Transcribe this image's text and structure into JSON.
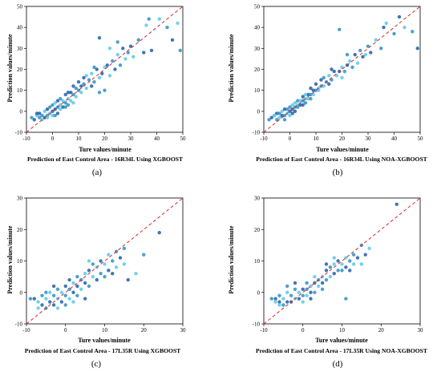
{
  "colors": {
    "points": "#2e8fc4",
    "points_dark": "#1f5fa8",
    "points_light": "#5cc8e8",
    "reference_line": "#d62728",
    "frame": "#000000"
  },
  "chart_data": [
    {
      "type": "scatter",
      "panel_label": "(a)",
      "title": "Prediction of East Control Area - 16R34L Using XGBOOST",
      "xlabel": "Ture values/minute",
      "ylabel": "Prediction values/minute",
      "xlim": [
        -10,
        50
      ],
      "ylim": [
        -10,
        50
      ],
      "xticks": [
        -10,
        0,
        10,
        20,
        30,
        40,
        50
      ],
      "yticks": [
        -10,
        0,
        10,
        20,
        30,
        40,
        50
      ],
      "reference_line": "y = x (dashed)",
      "points": [
        [
          -8,
          -3
        ],
        [
          -7,
          -4
        ],
        [
          -6,
          -2
        ],
        [
          -5,
          -3
        ],
        [
          -5,
          -1
        ],
        [
          -4,
          -4
        ],
        [
          -4,
          -2
        ],
        [
          -3,
          -3
        ],
        [
          -3,
          0
        ],
        [
          -2,
          -2
        ],
        [
          -2,
          1
        ],
        [
          -1,
          -1
        ],
        [
          -1,
          2
        ],
        [
          0,
          0
        ],
        [
          0,
          -2
        ],
        [
          0,
          3
        ],
        [
          1,
          1
        ],
        [
          1,
          4
        ],
        [
          2,
          2
        ],
        [
          2,
          -1
        ],
        [
          3,
          3
        ],
        [
          3,
          6
        ],
        [
          4,
          2
        ],
        [
          4,
          5
        ],
        [
          5,
          4
        ],
        [
          5,
          8
        ],
        [
          6,
          6
        ],
        [
          6,
          3
        ],
        [
          7,
          9
        ],
        [
          7,
          5
        ],
        [
          8,
          8
        ],
        [
          8,
          12
        ],
        [
          9,
          7
        ],
        [
          10,
          10
        ],
        [
          10,
          14
        ],
        [
          11,
          9
        ],
        [
          12,
          13
        ],
        [
          12,
          16
        ],
        [
          13,
          11
        ],
        [
          14,
          15
        ],
        [
          15,
          12
        ],
        [
          15,
          18
        ],
        [
          16,
          14
        ],
        [
          17,
          20
        ],
        [
          18,
          16
        ],
        [
          18,
          9
        ],
        [
          19,
          18
        ],
        [
          20,
          21
        ],
        [
          20,
          10
        ],
        [
          21,
          22
        ],
        [
          22,
          17
        ],
        [
          23,
          24
        ],
        [
          24,
          20
        ],
        [
          25,
          27
        ],
        [
          26,
          22
        ],
        [
          27,
          30
        ],
        [
          28,
          25
        ],
        [
          29,
          28
        ],
        [
          30,
          31
        ],
        [
          31,
          26
        ],
        [
          33,
          34
        ],
        [
          35,
          28
        ],
        [
          36,
          41
        ],
        [
          37,
          44
        ],
        [
          38,
          29
        ],
        [
          41,
          44
        ],
        [
          44,
          40
        ],
        [
          46,
          34
        ],
        [
          48,
          42
        ],
        [
          49,
          29
        ],
        [
          -6,
          -1
        ],
        [
          -2,
          -3
        ],
        [
          1,
          -2
        ],
        [
          2,
          5
        ],
        [
          3,
          1
        ],
        [
          5,
          2
        ],
        [
          6,
          9
        ],
        [
          8,
          4
        ],
        [
          9,
          11
        ],
        [
          11,
          12
        ],
        [
          13,
          17
        ],
        [
          16,
          21
        ],
        [
          18,
          35
        ],
        [
          22,
          30
        ],
        [
          25,
          33
        ]
      ]
    },
    {
      "type": "scatter",
      "panel_label": "(b)",
      "title": "Prediction of East Control Area - 16R34L Using NOA-XGBOOST",
      "xlabel": "Ture values/minute",
      "ylabel": "Prediction values/minute",
      "xlim": [
        -10,
        50
      ],
      "ylim": [
        -10,
        50
      ],
      "xticks": [
        -10,
        0,
        10,
        20,
        30,
        40,
        50
      ],
      "yticks": [
        -10,
        0,
        10,
        20,
        30,
        40,
        50
      ],
      "reference_line": "y = x (dashed)",
      "points": [
        [
          -8,
          -4
        ],
        [
          -7,
          -3
        ],
        [
          -6,
          -2
        ],
        [
          -5,
          -4
        ],
        [
          -5,
          -1
        ],
        [
          -4,
          -3
        ],
        [
          -4,
          -1
        ],
        [
          -3,
          -2
        ],
        [
          -3,
          0
        ],
        [
          -2,
          -2
        ],
        [
          -2,
          1
        ],
        [
          -1,
          -1
        ],
        [
          -1,
          1
        ],
        [
          0,
          0
        ],
        [
          0,
          -2
        ],
        [
          0,
          2
        ],
        [
          1,
          1
        ],
        [
          1,
          3
        ],
        [
          2,
          2
        ],
        [
          2,
          0
        ],
        [
          3,
          3
        ],
        [
          3,
          5
        ],
        [
          4,
          3
        ],
        [
          4,
          5
        ],
        [
          5,
          5
        ],
        [
          5,
          7
        ],
        [
          6,
          6
        ],
        [
          6,
          4
        ],
        [
          7,
          8
        ],
        [
          7,
          6
        ],
        [
          8,
          8
        ],
        [
          8,
          11
        ],
        [
          9,
          8
        ],
        [
          10,
          10
        ],
        [
          10,
          13
        ],
        [
          11,
          10
        ],
        [
          12,
          12
        ],
        [
          12,
          15
        ],
        [
          13,
          12
        ],
        [
          14,
          14
        ],
        [
          15,
          13
        ],
        [
          15,
          17
        ],
        [
          16,
          15
        ],
        [
          17,
          19
        ],
        [
          18,
          17
        ],
        [
          19,
          39
        ],
        [
          19,
          19
        ],
        [
          20,
          21
        ],
        [
          21,
          19
        ],
        [
          22,
          22
        ],
        [
          23,
          24
        ],
        [
          24,
          21
        ],
        [
          25,
          27
        ],
        [
          26,
          23
        ],
        [
          27,
          29
        ],
        [
          28,
          26
        ],
        [
          29,
          27
        ],
        [
          30,
          31
        ],
        [
          31,
          28
        ],
        [
          33,
          34
        ],
        [
          35,
          30
        ],
        [
          36,
          40
        ],
        [
          37,
          42
        ],
        [
          40,
          37
        ],
        [
          42,
          45
        ],
        [
          44,
          40
        ],
        [
          47,
          38
        ],
        [
          49,
          30
        ],
        [
          -6,
          -2
        ],
        [
          -2,
          -4
        ],
        [
          1,
          -1
        ],
        [
          2,
          4
        ],
        [
          3,
          2
        ],
        [
          5,
          3
        ],
        [
          6,
          8
        ],
        [
          8,
          6
        ],
        [
          9,
          10
        ],
        [
          11,
          11
        ],
        [
          13,
          16
        ],
        [
          16,
          20
        ],
        [
          20,
          16
        ],
        [
          22,
          27
        ]
      ]
    },
    {
      "type": "scatter",
      "panel_label": "(c)",
      "title": "Prediction of East Control Area - 17L35R Using XGBOOST",
      "xlabel": "Ture values/minute",
      "ylabel": "Prediction values/minute",
      "xlim": [
        -10,
        30
      ],
      "ylim": [
        -10,
        30
      ],
      "xticks": [
        -10,
        0,
        10,
        20,
        30
      ],
      "yticks": [
        -10,
        0,
        10,
        20,
        30
      ],
      "reference_line": "y = x (dashed)",
      "points": [
        [
          -9,
          -2
        ],
        [
          -8,
          -2
        ],
        [
          -7,
          -3
        ],
        [
          -6,
          -1
        ],
        [
          -6,
          -4
        ],
        [
          -5,
          -2
        ],
        [
          -5,
          -5
        ],
        [
          -4,
          -3
        ],
        [
          -4,
          0
        ],
        [
          -3,
          -1
        ],
        [
          -3,
          -4
        ],
        [
          -2,
          -2
        ],
        [
          -2,
          1
        ],
        [
          -1,
          -3
        ],
        [
          -1,
          0
        ],
        [
          0,
          -1
        ],
        [
          0,
          2
        ],
        [
          1,
          -2
        ],
        [
          1,
          1
        ],
        [
          2,
          0
        ],
        [
          2,
          3
        ],
        [
          3,
          -1
        ],
        [
          3,
          2
        ],
        [
          4,
          1
        ],
        [
          4,
          4
        ],
        [
          5,
          3
        ],
        [
          5,
          6
        ],
        [
          6,
          2
        ],
        [
          6,
          7
        ],
        [
          7,
          5
        ],
        [
          7,
          9
        ],
        [
          8,
          4
        ],
        [
          8,
          8
        ],
        [
          9,
          6
        ],
        [
          9,
          10
        ],
        [
          10,
          9
        ],
        [
          10,
          5
        ],
        [
          11,
          7
        ],
        [
          11,
          12
        ],
        [
          12,
          10
        ],
        [
          12,
          6
        ],
        [
          13,
          8
        ],
        [
          13,
          13
        ],
        [
          14,
          11
        ],
        [
          15,
          9
        ],
        [
          15,
          14
        ],
        [
          16,
          4
        ],
        [
          18,
          6
        ],
        [
          20,
          12
        ],
        [
          24,
          19
        ],
        [
          -7,
          -5
        ],
        [
          -5,
          0
        ],
        [
          -3,
          2
        ],
        [
          -2,
          -5
        ],
        [
          0,
          -4
        ],
        [
          1,
          4
        ],
        [
          2,
          -3
        ],
        [
          3,
          5
        ],
        [
          5,
          -2
        ],
        [
          6,
          10
        ]
      ]
    },
    {
      "type": "scatter",
      "panel_label": "(d)",
      "title": "Prediction of East Control Area - 17L35R Using NOA-XGBOOST",
      "xlabel": "Ture values/minute",
      "ylabel": "Prediction values/minute",
      "xlim": [
        -10,
        30
      ],
      "ylim": [
        -10,
        30
      ],
      "xticks": [
        -10,
        0,
        10,
        20,
        30
      ],
      "yticks": [
        -10,
        0,
        10,
        20,
        30
      ],
      "reference_line": "y = x (dashed)",
      "points": [
        [
          -8,
          -2
        ],
        [
          -7,
          -2
        ],
        [
          -7,
          -3
        ],
        [
          -6,
          -1
        ],
        [
          -6,
          -3
        ],
        [
          -5,
          -2
        ],
        [
          -5,
          -4
        ],
        [
          -4,
          -3
        ],
        [
          -4,
          0
        ],
        [
          -3,
          -1
        ],
        [
          -3,
          -3
        ],
        [
          -2,
          -2
        ],
        [
          -2,
          1
        ],
        [
          -1,
          -2
        ],
        [
          -1,
          0
        ],
        [
          0,
          -1
        ],
        [
          0,
          1
        ],
        [
          1,
          -1
        ],
        [
          1,
          1
        ],
        [
          2,
          0
        ],
        [
          2,
          2
        ],
        [
          3,
          0
        ],
        [
          3,
          3
        ],
        [
          4,
          2
        ],
        [
          4,
          4
        ],
        [
          5,
          3
        ],
        [
          5,
          5
        ],
        [
          6,
          4
        ],
        [
          6,
          7
        ],
        [
          7,
          5
        ],
        [
          7,
          8
        ],
        [
          8,
          6
        ],
        [
          8,
          9
        ],
        [
          9,
          7
        ],
        [
          9,
          10
        ],
        [
          10,
          9
        ],
        [
          10,
          7
        ],
        [
          11,
          8
        ],
        [
          11,
          11
        ],
        [
          12,
          10
        ],
        [
          12,
          7
        ],
        [
          13,
          9
        ],
        [
          13,
          12
        ],
        [
          14,
          11
        ],
        [
          15,
          9
        ],
        [
          15,
          15
        ],
        [
          16,
          12
        ],
        [
          17,
          14
        ],
        [
          11,
          -2
        ],
        [
          24,
          28
        ],
        [
          -6,
          -4
        ],
        [
          -4,
          2
        ],
        [
          -2,
          3
        ],
        [
          0,
          -3
        ],
        [
          1,
          3
        ],
        [
          2,
          -2
        ],
        [
          3,
          5
        ],
        [
          5,
          1
        ],
        [
          6,
          9
        ],
        [
          8,
          11
        ]
      ]
    }
  ]
}
